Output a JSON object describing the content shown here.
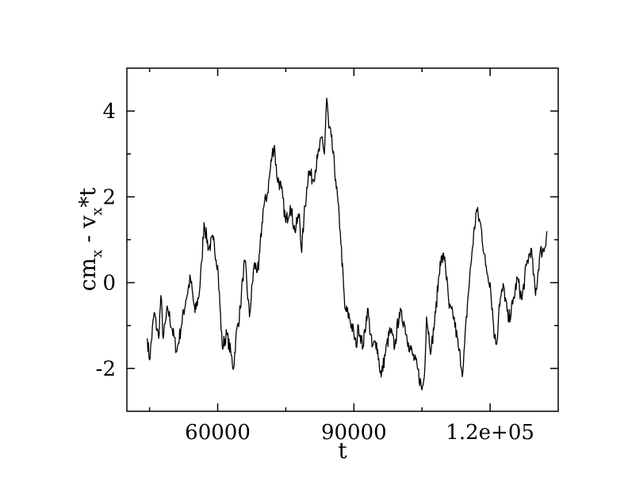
{
  "chart_data": {
    "type": "line",
    "title": "",
    "xlabel": "t",
    "ylabel": {
      "base": "cm",
      "sub1": "x",
      "mid": " - v",
      "sub2": "x",
      "tail": "*t"
    },
    "xlim": [
      40000,
      135000
    ],
    "ylim": [
      -3,
      5
    ],
    "x_ticks": [
      60000,
      90000,
      120000
    ],
    "x_tick_labels": [
      "60000",
      "90000",
      "1.2e+05"
    ],
    "y_ticks": [
      -2,
      0,
      2,
      4
    ],
    "y_tick_labels": [
      "-2",
      "0",
      "2",
      "4"
    ],
    "grid": false,
    "legend": "none",
    "line_color": "#000000",
    "series": [
      {
        "x": [
          44500,
          45000,
          46000,
          47000,
          47500,
          48000,
          49000,
          50000,
          51000,
          52000,
          53000,
          54000,
          55000,
          56000,
          56500,
          57000,
          58000,
          59000,
          60000,
          61000,
          62000,
          63000,
          63500,
          64000,
          65000,
          65500,
          66000,
          67000,
          68000,
          69000,
          70000,
          71000,
          72000,
          72500,
          73000,
          74000,
          75000,
          76000,
          77000,
          78000,
          78500,
          79000,
          80000,
          81000,
          82000,
          83000,
          83500,
          84000,
          84500,
          85000,
          86000,
          87000,
          88000,
          89000,
          90000,
          90500,
          91000,
          92000,
          93000,
          94000,
          95000,
          96000,
          97000,
          98000,
          99000,
          100000,
          101000,
          102000,
          103000,
          104000,
          105000,
          105500,
          106000,
          107000,
          108000,
          109000,
          110000,
          111000,
          112000,
          113000,
          114000,
          115000,
          116000,
          117000,
          118000,
          119000,
          120000,
          121000,
          121500,
          122000,
          123000,
          124000,
          125000,
          126000,
          127000,
          128000,
          129000,
          130000,
          131000,
          132000,
          132500
        ],
        "y": [
          -1.3,
          -1.8,
          -0.7,
          -1.3,
          -0.3,
          -1.3,
          -0.6,
          -1.1,
          -1.6,
          -1.0,
          -0.4,
          0.1,
          -0.7,
          -0.2,
          0.5,
          1.4,
          0.8,
          1.0,
          0.4,
          -1.5,
          -1.2,
          -1.7,
          -2.0,
          -1.3,
          -0.6,
          0.1,
          0.5,
          -0.8,
          0.4,
          0.3,
          1.7,
          2.1,
          3.0,
          3.2,
          2.5,
          2.2,
          1.4,
          1.8,
          1.2,
          1.6,
          0.7,
          1.5,
          2.6,
          2.4,
          2.9,
          3.4,
          3.0,
          4.3,
          3.6,
          3.4,
          2.4,
          1.2,
          -0.6,
          -0.8,
          -1.2,
          -1.5,
          -1.0,
          -1.5,
          -0.6,
          -1.5,
          -1.4,
          -2.2,
          -1.6,
          -1.1,
          -1.5,
          -0.7,
          -0.9,
          -1.4,
          -1.7,
          -2.0,
          -2.5,
          -2.2,
          -0.8,
          -1.6,
          -0.7,
          0.5,
          0.6,
          -0.6,
          -0.8,
          -1.5,
          -2.1,
          -0.5,
          0.7,
          1.7,
          1.3,
          0.4,
          0.0,
          -1.3,
          -1.4,
          -0.5,
          -0.1,
          -0.9,
          -0.5,
          0.1,
          -0.4,
          0.4,
          0.8,
          -0.3,
          0.7,
          0.8,
          1.2
        ]
      }
    ]
  }
}
